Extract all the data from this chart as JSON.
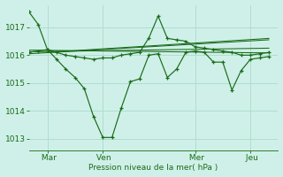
{
  "bg_color": "#cff0e8",
  "grid_color": "#b0ddd0",
  "line_color": "#1a6b1a",
  "xlabel": "Pression niveau de la mer( hPa )",
  "ylim": [
    1012.6,
    1017.8
  ],
  "yticks": [
    1013,
    1014,
    1015,
    1016,
    1017
  ],
  "xtick_labels": [
    " Mar",
    " Ven",
    " Mer",
    " Jeu"
  ],
  "xtick_positions": [
    2,
    8,
    18,
    24
  ],
  "xlim": [
    0,
    27
  ],
  "x_main": [
    0,
    1,
    2,
    3,
    4,
    5,
    6,
    7,
    8,
    9,
    10,
    11,
    12,
    13,
    14,
    15,
    16,
    17,
    18,
    19,
    20,
    21,
    22,
    23,
    24,
    25,
    26
  ],
  "series1": [
    1017.55,
    1017.1,
    1016.2,
    1015.85,
    1015.5,
    1015.2,
    1014.8,
    1013.8,
    1013.05,
    1013.05,
    1014.1,
    1015.05,
    1015.15,
    1016.0,
    1016.05,
    1015.2,
    1015.5,
    1016.1,
    1016.15,
    1016.1,
    1015.75,
    1015.75,
    1014.75,
    1015.45,
    1015.85,
    1015.9,
    1015.95
  ],
  "series2": [
    1016.1,
    1016.15,
    1016.2,
    1016.1,
    1016.0,
    1015.95,
    1015.9,
    1015.85,
    1015.9,
    1015.9,
    1016.0,
    1016.05,
    1016.1,
    1016.62,
    1017.4,
    1016.6,
    1016.55,
    1016.5,
    1016.3,
    1016.25,
    1016.2,
    1016.15,
    1016.1,
    1016.0,
    1016.0,
    1016.05,
    1016.1
  ],
  "trend1_x": [
    0,
    26
  ],
  "trend1_y": [
    1016.05,
    1016.55
  ],
  "trend2_x": [
    0,
    26
  ],
  "trend2_y": [
    1016.12,
    1016.25
  ],
  "trend3_x": [
    0,
    26
  ],
  "trend3_y": [
    1016.18,
    1016.08
  ],
  "trend4_x": [
    2,
    26
  ],
  "trend4_y": [
    1016.1,
    1016.6
  ]
}
